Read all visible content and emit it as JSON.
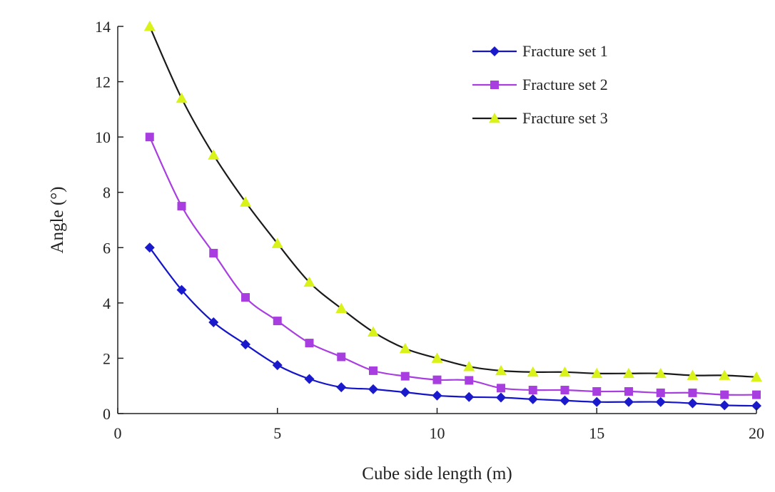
{
  "chart_data": {
    "type": "line",
    "title": "",
    "xlabel": "Cube side length (m)",
    "ylabel": "Angle (°)",
    "xlim": [
      0,
      20
    ],
    "ylim": [
      0,
      14
    ],
    "x_ticks": [
      "0",
      "5",
      "10",
      "15",
      "20"
    ],
    "y_ticks": [
      "0",
      "2",
      "4",
      "6",
      "8",
      "10",
      "12",
      "14"
    ],
    "grid": false,
    "legend_position": "top-right",
    "x": [
      1,
      2,
      3,
      4,
      5,
      6,
      7,
      8,
      9,
      10,
      11,
      12,
      13,
      14,
      15,
      16,
      17,
      18,
      19,
      20
    ],
    "series": [
      {
        "name": "Fracture set 1",
        "line_color": "#1515c8",
        "marker": "diamond",
        "marker_color": "#1a1acc",
        "values": [
          6.0,
          4.47,
          3.3,
          2.5,
          1.75,
          1.25,
          0.95,
          0.88,
          0.77,
          0.65,
          0.6,
          0.58,
          0.52,
          0.47,
          0.42,
          0.42,
          0.42,
          0.37,
          0.3,
          0.28
        ]
      },
      {
        "name": "Fracture set 2",
        "line_color": "#a83ee0",
        "marker": "square",
        "marker_color": "#a83ee0",
        "values": [
          10.0,
          7.5,
          5.8,
          4.2,
          3.35,
          2.55,
          2.05,
          1.55,
          1.35,
          1.22,
          1.2,
          0.92,
          0.85,
          0.85,
          0.8,
          0.8,
          0.75,
          0.75,
          0.68,
          0.68
        ]
      },
      {
        "name": "Fracture set 3",
        "line_color": "#1a1a1a",
        "marker": "triangle",
        "marker_color": "#d9f21a",
        "values": [
          14.0,
          11.4,
          9.35,
          7.65,
          6.15,
          4.75,
          3.8,
          2.95,
          2.35,
          2.0,
          1.7,
          1.55,
          1.5,
          1.5,
          1.45,
          1.45,
          1.45,
          1.38,
          1.38,
          1.32
        ]
      }
    ]
  }
}
